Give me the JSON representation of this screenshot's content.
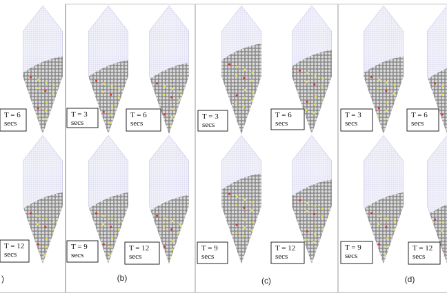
{
  "panels": [
    {
      "caption": ")",
      "frames": [
        {
          "time": "T = 6",
          "unit": "secs"
        },
        {
          "time": "T = 12",
          "unit": "secs"
        }
      ]
    },
    {
      "caption": "(b)",
      "frames": [
        {
          "time": "T = 3",
          "unit": "secs"
        },
        {
          "time": "T = 6",
          "unit": "secs"
        },
        {
          "time": "T = 9",
          "unit": "secs"
        },
        {
          "time": "T = 12",
          "unit": "secs"
        }
      ]
    },
    {
      "caption": "(c)",
      "frames": [
        {
          "time": "T = 3",
          "unit": "secs"
        },
        {
          "time": "T = 6",
          "unit": "secs"
        },
        {
          "time": "T = 9",
          "unit": "secs"
        },
        {
          "time": "T = 12",
          "unit": "secs"
        }
      ]
    },
    {
      "caption": "(d)",
      "frames": [
        {
          "time": "T = 3",
          "unit": "secs"
        },
        {
          "time": "T = 6",
          "unit": "secs"
        },
        {
          "time": "T = 9",
          "unit": "secs"
        },
        {
          "time": "T = 12",
          "unit": "secs"
        }
      ]
    }
  ]
}
